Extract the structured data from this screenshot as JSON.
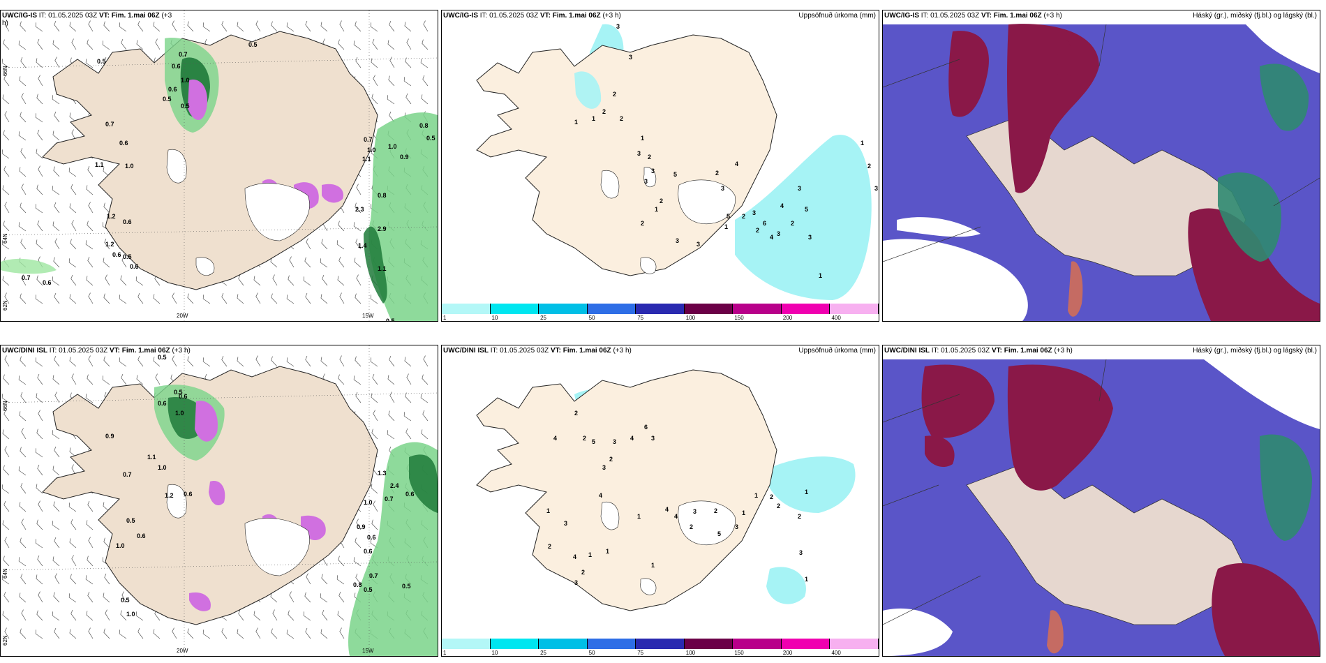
{
  "panels": {
    "p1": {
      "model": "UWC/IG-IS",
      "it_label": "IT:",
      "it_value": "01.05.2025 03Z",
      "vt_label": "VT:",
      "vt_value": "Fim. 1.mai 06Z",
      "lead": "(+3",
      "lead2": "h)",
      "right_title": ""
    },
    "p2": {
      "model": "UWC/IG-IS",
      "it_label": "IT:",
      "it_value": "01.05.2025 03Z",
      "vt_label": "VT:",
      "vt_value": "Fim. 1.mai 06Z",
      "lead": "(+3 h)",
      "right_title": "Uppsöfnuð úrkoma (mm)"
    },
    "p3": {
      "model": "UWC/IG-IS",
      "it_label": "IT:",
      "it_value": "01.05.2025 03Z",
      "vt_label": "VT:",
      "vt_value": "Fim. 1.mai 06Z",
      "lead": "(+3 h)",
      "right_title": "Háský (gr.), miðský (fj.bl.) og lágský (bl.)"
    },
    "p4": {
      "model": "UWC/DINI ISL",
      "it_label": "IT:",
      "it_value": "01.05.2025 03Z",
      "vt_label": "VT:",
      "vt_value": "Fim. 1.mai 06Z",
      "lead": "(+3 h)",
      "right_title": ""
    },
    "p5": {
      "model": "UWC/DINI ISL",
      "it_label": "IT:",
      "it_value": "01.05.2025 03Z",
      "vt_label": "VT:",
      "vt_value": "Fim. 1.mai 06Z",
      "lead": "(+3 h)",
      "right_title": "Uppsöfnuð úrkoma (mm)"
    },
    "p6": {
      "model": "UWC/DINI ISL",
      "it_label": "IT:",
      "it_value": "01.05.2025 03Z",
      "vt_label": "VT:",
      "vt_value": "Fim. 1.mai 06Z",
      "lead": "(+3 h)",
      "right_title": "Háský (gr.), miðský (fj.bl.) og lágský (bl.)"
    }
  },
  "axes": {
    "lon_20": "20W",
    "lon_15": "15W",
    "lat_66": "66N",
    "lat_64": "64N",
    "lat_62": "62N"
  },
  "colorbar": {
    "ticks": [
      "1",
      "10",
      "25",
      "50",
      "75",
      "100",
      "150",
      "200",
      "400"
    ],
    "colors": [
      "#b3f7f7",
      "#00e6f0",
      "#00bfe6",
      "#2e6ee6",
      "#2a2ab0",
      "#6b0047",
      "#b8008a",
      "#f000b0",
      "#f7b0f0"
    ]
  },
  "labels": {
    "p1": [
      "0.5",
      "0.5",
      "0.7",
      "0.6",
      "1.0",
      "0.6",
      "0.5",
      "0.5",
      "0.7",
      "0.6",
      "1.1",
      "1.0",
      "1.2",
      "0.6",
      "0.6",
      "0.5",
      "0.6",
      "0.7",
      "1.0",
      "1.0",
      "1.1",
      "0.8",
      "2.3",
      "2.9",
      "1.4",
      "1.1",
      "0.7",
      "0.6",
      "0.5",
      "0.9",
      "0.8",
      "0.5",
      "1.2"
    ],
    "p2": [
      "3",
      "3",
      "2",
      "1",
      "1",
      "2",
      "2",
      "1",
      "3",
      "2",
      "3",
      "3",
      "5",
      "2",
      "1",
      "2",
      "3",
      "3",
      "5",
      "1",
      "2",
      "3",
      "2",
      "4",
      "3",
      "2",
      "6",
      "4",
      "3",
      "4",
      "2",
      "3",
      "5",
      "3",
      "1",
      "1",
      "2",
      "3"
    ],
    "p4": [
      "0.5",
      "0.5",
      "0.6",
      "0.6",
      "1.0",
      "0.9",
      "1.1",
      "1.0",
      "0.7",
      "1.2",
      "0.5",
      "0.6",
      "1.0",
      "0.6",
      "0.5",
      "1.0",
      "1.3",
      "2.4",
      "1.0",
      "0.7",
      "0.9",
      "0.6",
      "0.6",
      "0.7",
      "0.8",
      "0.5",
      "0.6",
      "0.5"
    ],
    "p5": [
      "2",
      "2",
      "4",
      "5",
      "3",
      "4",
      "6",
      "3",
      "2",
      "3",
      "4",
      "1",
      "3",
      "2",
      "4",
      "1",
      "3",
      "2",
      "1",
      "1",
      "1",
      "4",
      "4",
      "3",
      "2",
      "2",
      "5",
      "3",
      "1",
      "1",
      "2",
      "2",
      "2",
      "1",
      "3",
      "1"
    ]
  }
}
